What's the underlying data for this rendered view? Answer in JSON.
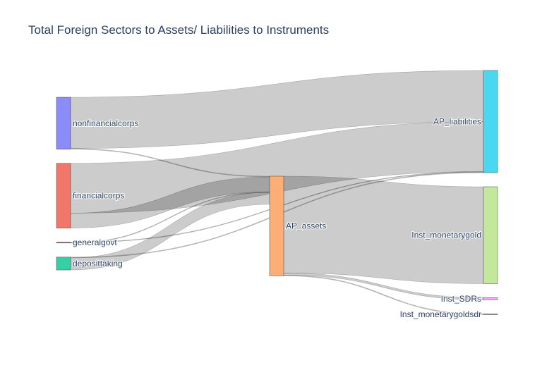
{
  "chart_data": {
    "type": "sankey",
    "title": "Total Foreign Sectors to Assets/ Liabilities to Instruments",
    "nodes": [
      {
        "id": "nonfinancialcorps",
        "label": "nonfinancialcorps",
        "color": "#8b8bf9"
      },
      {
        "id": "financialcorps",
        "label": "financialcorps",
        "color": "#f0776a"
      },
      {
        "id": "generalgovt",
        "label": "generalgovt",
        "color": "#a05a9c"
      },
      {
        "id": "deposittaking",
        "label": "deposittaking",
        "color": "#35d0a5"
      },
      {
        "id": "AP_assets",
        "label": "AP_assets",
        "color": "#fdae77"
      },
      {
        "id": "AP_liabilities",
        "label": "AP_liabilities",
        "color": "#4ad7f2"
      },
      {
        "id": "Inst_monetarygold",
        "label": "Inst_monetarygold",
        "color": "#c3e89b"
      },
      {
        "id": "Inst_SDRs",
        "label": "Inst_SDRs",
        "color": "#f5a8f3"
      },
      {
        "id": "Inst_monetarygoldsdr",
        "label": "Inst_monetarygoldsdr",
        "color": "#888888"
      }
    ],
    "links": [
      {
        "source": "nonfinancialcorps",
        "target": "AP_liabilities",
        "value": 72
      },
      {
        "source": "nonfinancialcorps",
        "target": "AP_assets",
        "value": 1
      },
      {
        "source": "financialcorps",
        "target": "AP_liabilities",
        "value": 70
      },
      {
        "source": "financialcorps",
        "target": "AP_assets",
        "value": 21
      },
      {
        "source": "generalgovt",
        "target": "AP_assets",
        "value": 0.6
      },
      {
        "source": "generalgovt",
        "target": "AP_liabilities",
        "value": 0.6
      },
      {
        "source": "deposittaking",
        "target": "AP_assets",
        "value": 17
      },
      {
        "source": "deposittaking",
        "target": "AP_liabilities",
        "value": 1
      },
      {
        "source": "AP_assets",
        "target": "Inst_monetarygold",
        "value": 136
      },
      {
        "source": "AP_assets",
        "target": "Inst_SDRs",
        "value": 3
      },
      {
        "source": "AP_assets",
        "target": "Inst_monetarygoldsdr",
        "value": 1
      }
    ]
  }
}
